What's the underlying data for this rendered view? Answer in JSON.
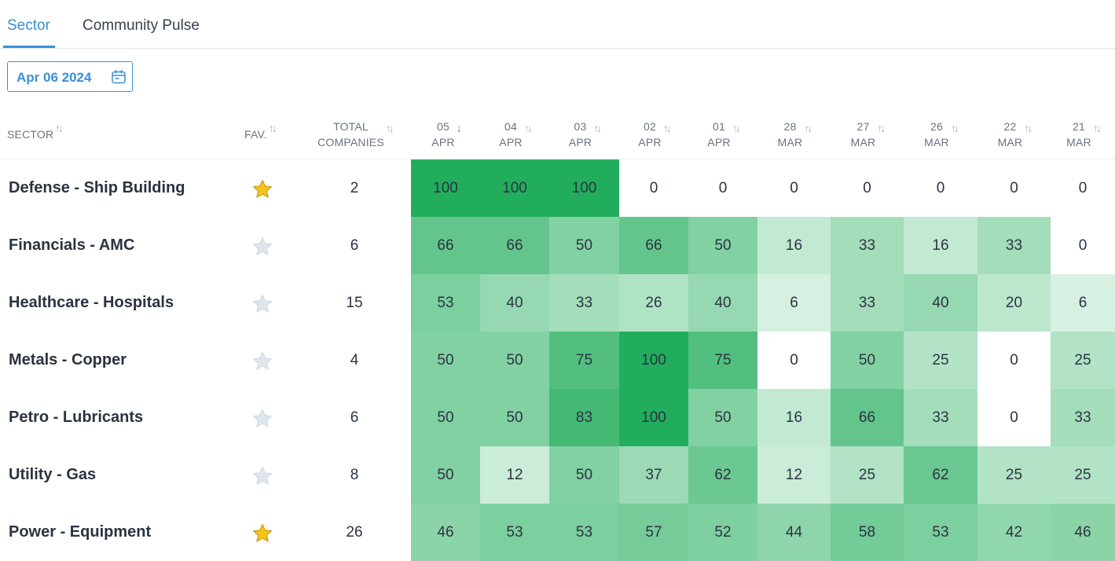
{
  "tabs": [
    {
      "label": "Sector",
      "active": true
    },
    {
      "label": "Community Pulse",
      "active": false
    }
  ],
  "date_picker": {
    "value": "Apr 06 2024",
    "icon": "calendar-icon"
  },
  "columns": {
    "sector": "SECTOR",
    "fav": "FAV.",
    "total": [
      "TOTAL",
      "COMPANIES"
    ],
    "dates": [
      {
        "day": "05",
        "month": "APR",
        "sorted": true
      },
      {
        "day": "04",
        "month": "APR",
        "sorted": false
      },
      {
        "day": "03",
        "month": "APR",
        "sorted": false
      },
      {
        "day": "02",
        "month": "APR",
        "sorted": false
      },
      {
        "day": "01",
        "month": "APR",
        "sorted": false
      },
      {
        "day": "28",
        "month": "MAR",
        "sorted": false
      },
      {
        "day": "27",
        "month": "MAR",
        "sorted": false
      },
      {
        "day": "26",
        "month": "MAR",
        "sorted": false
      },
      {
        "day": "22",
        "month": "MAR",
        "sorted": false
      },
      {
        "day": "21",
        "month": "MAR",
        "sorted": false
      }
    ]
  },
  "colors": {
    "accent": "#3b8fd6",
    "heat_max": "#22ad5c",
    "star_fav": "#f6c51b",
    "star_empty": "#dfe6ee"
  },
  "rows": [
    {
      "name": "Defense - Ship Building",
      "fav": true,
      "total": "2",
      "values": [
        100,
        100,
        100,
        0,
        0,
        0,
        0,
        0,
        0,
        0
      ]
    },
    {
      "name": "Financials - AMC",
      "fav": false,
      "total": "6",
      "values": [
        66,
        66,
        50,
        66,
        50,
        16,
        33,
        16,
        33,
        0
      ]
    },
    {
      "name": "Healthcare - Hospitals",
      "fav": false,
      "total": "15",
      "values": [
        53,
        40,
        33,
        26,
        40,
        6,
        33,
        40,
        20,
        6
      ]
    },
    {
      "name": "Metals - Copper",
      "fav": false,
      "total": "4",
      "values": [
        50,
        50,
        75,
        100,
        75,
        0,
        50,
        25,
        0,
        25
      ]
    },
    {
      "name": "Petro - Lubricants",
      "fav": false,
      "total": "6",
      "values": [
        50,
        50,
        83,
        100,
        50,
        16,
        66,
        33,
        0,
        33
      ]
    },
    {
      "name": "Utility - Gas",
      "fav": false,
      "total": "8",
      "values": [
        50,
        12,
        50,
        37,
        62,
        12,
        25,
        62,
        25,
        25
      ]
    },
    {
      "name": "Power - Equipment",
      "fav": true,
      "total": "26",
      "values": [
        46,
        53,
        53,
        57,
        52,
        44,
        58,
        53,
        42,
        46
      ]
    }
  ]
}
